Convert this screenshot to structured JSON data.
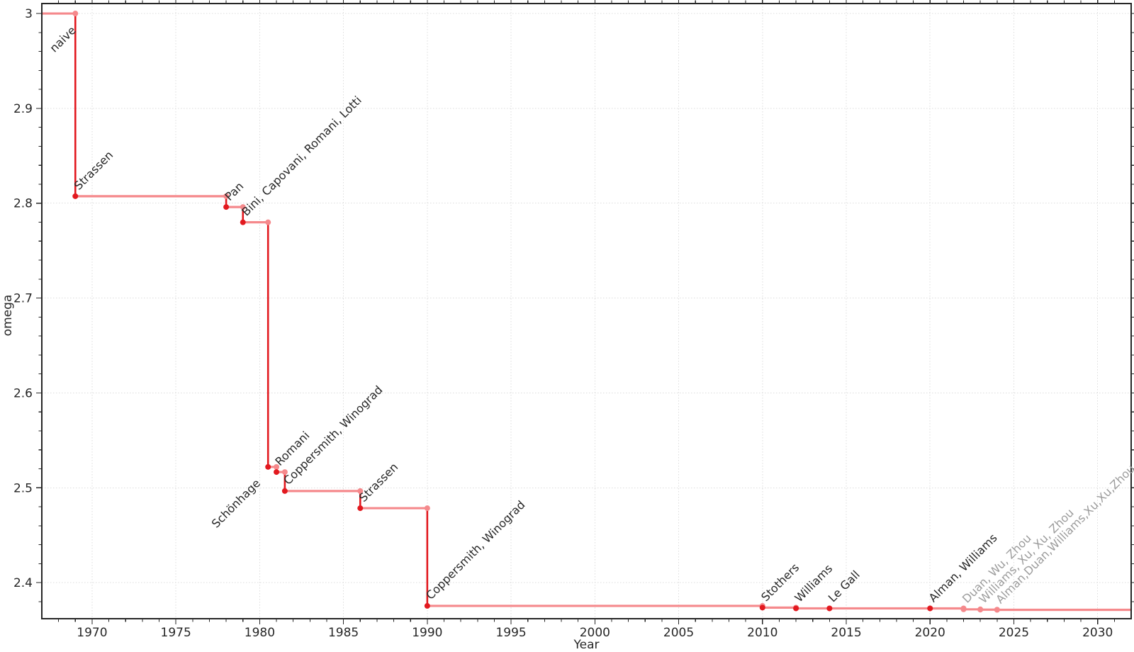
{
  "chart_data": {
    "type": "line",
    "step_style": "post",
    "title": "",
    "xlabel": "Year",
    "ylabel": "omega",
    "xlim": [
      1967,
      2032
    ],
    "ylim": [
      2.362,
      3.0105
    ],
    "grid": {
      "show": true,
      "axis": "both",
      "style": "dotted"
    },
    "legend": {
      "show": false
    },
    "x_major_ticks": [
      {
        "value": 1970,
        "label": "1970"
      },
      {
        "value": 1975,
        "label": "1975"
      },
      {
        "value": 1980,
        "label": "1980"
      },
      {
        "value": 1985,
        "label": "1985"
      },
      {
        "value": 1990,
        "label": "1990"
      },
      {
        "value": 1995,
        "label": "1995"
      },
      {
        "value": 2000,
        "label": "2000"
      },
      {
        "value": 2005,
        "label": "2005"
      },
      {
        "value": 2010,
        "label": "2010"
      },
      {
        "value": 2015,
        "label": "2015"
      },
      {
        "value": 2020,
        "label": "2020"
      },
      {
        "value": 2025,
        "label": "2025"
      },
      {
        "value": 2030,
        "label": "2030"
      }
    ],
    "x_minor_step": 1,
    "y_major_ticks": [
      {
        "value": 2.4,
        "label": "2.4"
      },
      {
        "value": 2.5,
        "label": "2.5"
      },
      {
        "value": 2.6,
        "label": "2.6"
      },
      {
        "value": 2.7,
        "label": "2.7"
      },
      {
        "value": 2.8,
        "label": "2.8"
      },
      {
        "value": 2.9,
        "label": "2.9"
      },
      {
        "value": 3.0,
        "label": "3"
      }
    ],
    "y_minor_step": 0.02,
    "colors": {
      "step_line": "#f5898c",
      "drop_line": "#e2191f",
      "point": "#e2191f",
      "point_preliminary": "#f5898c",
      "junction_point": "#f5898c",
      "annotation": "#262626",
      "annotation_preliminary": "#9c9c9c",
      "grid": "#dcdcdc",
      "frame": "#262626",
      "tick_label": "#262626"
    },
    "points": [
      {
        "label": "naive",
        "year": null,
        "omega": 3.0,
        "preliminary": false,
        "label_anchor": {
          "year": 1967.55,
          "omega": 2.9525
        }
      },
      {
        "label": "Strassen",
        "year": 1969,
        "omega": 2.8074,
        "preliminary": false
      },
      {
        "label": "Pan",
        "year": 1978,
        "omega": 2.796,
        "preliminary": false
      },
      {
        "label": "Bini, Capovani, Romani, Lotti",
        "year": 1979,
        "omega": 2.7799,
        "preliminary": false
      },
      {
        "label": "Schönhage",
        "year": 1980.5,
        "omega": 2.522,
        "preliminary": false,
        "label_align": "end"
      },
      {
        "label": "Romani",
        "year": 1981,
        "omega": 2.5166,
        "preliminary": false
      },
      {
        "label": "Coppersmith, Winograd",
        "year": 1981.5,
        "omega": 2.4966,
        "preliminary": false
      },
      {
        "label": "Strassen",
        "year": 1986,
        "omega": 2.4785,
        "preliminary": false
      },
      {
        "label": "Coppersmith, Winograd",
        "year": 1990,
        "omega": 2.3755,
        "preliminary": false
      },
      {
        "label": "Stothers",
        "year": 2010,
        "omega": 2.3737,
        "preliminary": false
      },
      {
        "label": "Williams",
        "year": 2012,
        "omega": 2.3728642,
        "preliminary": false
      },
      {
        "label": "Le Gall",
        "year": 2014,
        "omega": 2.3728639,
        "preliminary": false
      },
      {
        "label": "Alman, Williams",
        "year": 2020,
        "omega": 2.3728596,
        "preliminary": false
      },
      {
        "label": "Duan, Wu, Zhou",
        "year": 2022,
        "omega": 2.371866,
        "preliminary": true
      },
      {
        "label": "Williams, Xu, Xu, Zhou",
        "year": 2023,
        "omega": 2.371552,
        "preliminary": true
      },
      {
        "label": "Alman,Duan,Williams,Xu,Xu,Zhou",
        "year": 2024,
        "omega": 2.371339,
        "preliminary": true
      }
    ]
  }
}
